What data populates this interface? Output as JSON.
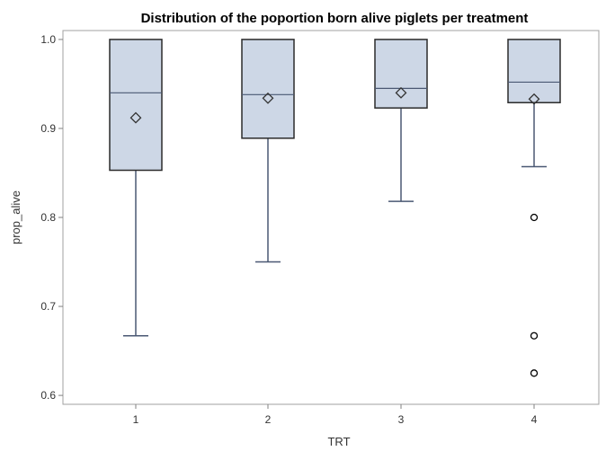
{
  "chart_data": {
    "type": "boxplot",
    "title": "Distribution of the poportion born alive piglets per treatment",
    "xlabel": "TRT",
    "ylabel": "prop_alive",
    "ylim": [
      0.59,
      1.01
    ],
    "yticks": [
      "0.6",
      "0.7",
      "0.8",
      "0.9",
      "1.0"
    ],
    "categories": [
      "1",
      "2",
      "3",
      "4"
    ],
    "boxes": [
      {
        "category": "1",
        "whisker_low": 0.667,
        "q1": 0.853,
        "median": 0.94,
        "q3": 1.0,
        "whisker_high": 1.0,
        "mean": 0.912,
        "outliers": []
      },
      {
        "category": "2",
        "whisker_low": 0.75,
        "q1": 0.889,
        "median": 0.938,
        "q3": 1.0,
        "whisker_high": 1.0,
        "mean": 0.934,
        "outliers": []
      },
      {
        "category": "3",
        "whisker_low": 0.818,
        "q1": 0.923,
        "median": 0.945,
        "q3": 1.0,
        "whisker_high": 1.0,
        "mean": 0.94,
        "outliers": []
      },
      {
        "category": "4",
        "whisker_low": 0.857,
        "q1": 0.929,
        "median": 0.952,
        "q3": 1.0,
        "whisker_high": 1.0,
        "mean": 0.933,
        "outliers": [
          0.8,
          0.667,
          0.625
        ]
      }
    ],
    "grid": false,
    "legend": "none",
    "colors": {
      "box_fill": "#cdd7e6",
      "box_stroke": "#2b2b2b",
      "whisker": "#4a5873",
      "median": "#4a5873",
      "mean_marker": "#333333",
      "outlier": "#000000",
      "frame": "#a0a0a0"
    }
  }
}
